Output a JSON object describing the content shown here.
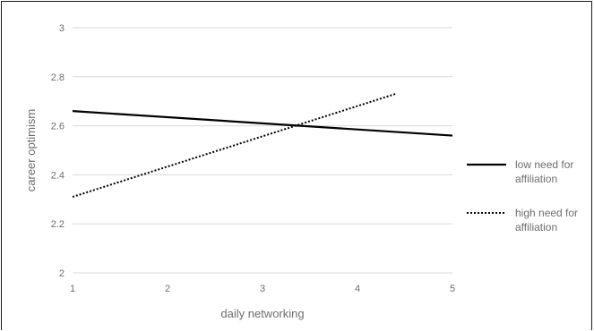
{
  "chart_data": {
    "type": "line",
    "title": "",
    "xlabel": "daily networking",
    "ylabel": "career optimism",
    "xlim": [
      1,
      5
    ],
    "ylim": [
      2,
      3
    ],
    "x_ticks": [
      1,
      2,
      3,
      4,
      5
    ],
    "y_ticks": [
      2,
      2.2,
      2.4,
      2.6,
      2.8,
      3
    ],
    "grid": "horizontal",
    "legend_position": "right",
    "series": [
      {
        "name_lines": [
          "low need for",
          "affiliation"
        ],
        "name": "low need for affiliation",
        "style": "solid",
        "color": "#000000",
        "points": [
          [
            1,
            2.66
          ],
          [
            5,
            2.56
          ]
        ]
      },
      {
        "name_lines": [
          "high need for",
          "affiliation"
        ],
        "name": "high need for affiliation",
        "style": "dotted",
        "color": "#000000",
        "points": [
          [
            1,
            2.31
          ],
          [
            4.4,
            2.73
          ]
        ]
      }
    ]
  }
}
